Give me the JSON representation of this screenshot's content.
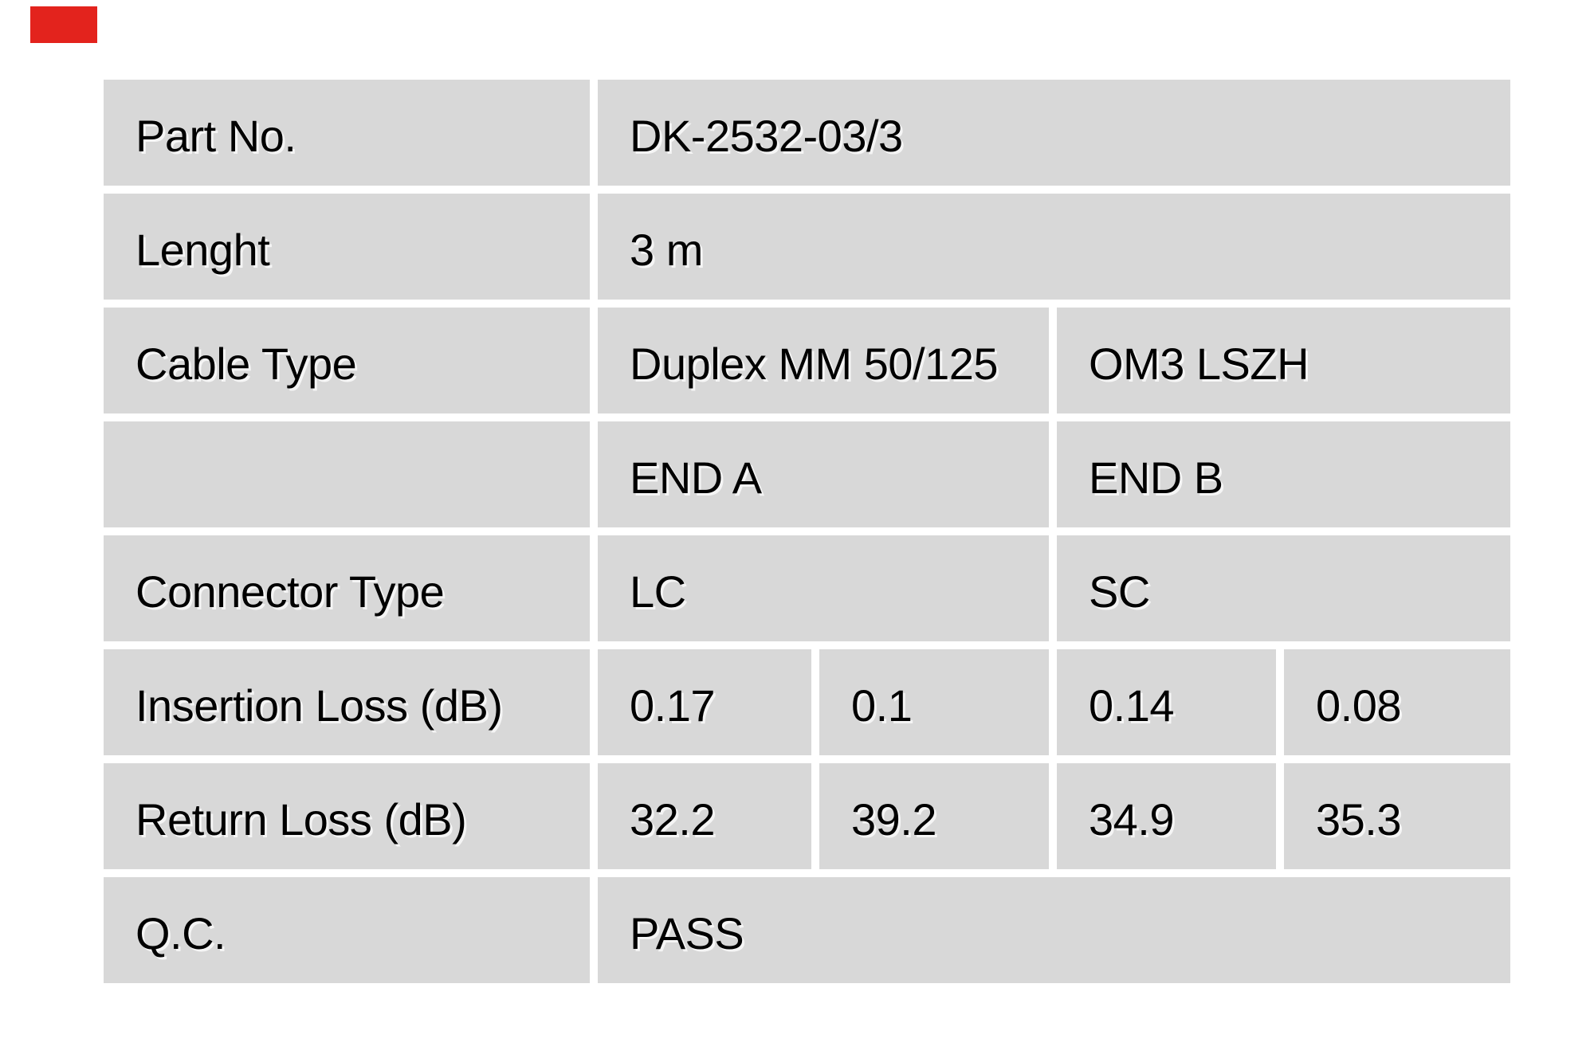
{
  "page": {
    "background_color": "#ffffff"
  },
  "logo": {
    "name": "red-brand-block",
    "color": "#e3231d"
  },
  "table": {
    "cell_background_color": "#d8d8d8",
    "text_color": "#000000",
    "column_group_headers": [
      "END A",
      "END B"
    ],
    "rows": [
      {
        "label": "Part No.",
        "cells": [
          {
            "text": "DK-2532-03/3"
          }
        ]
      },
      {
        "label": "Lenght",
        "cells": [
          {
            "text": "3 m"
          }
        ]
      },
      {
        "label": "Cable Type",
        "cells": [
          {
            "text": "Duplex MM 50/125"
          },
          {
            "text": "OM3 LSZH"
          }
        ]
      },
      {
        "label": "",
        "cells": [
          {
            "text": "END A"
          },
          {
            "text": "END B"
          }
        ]
      },
      {
        "label": "Connector Type",
        "cells": [
          {
            "text": "LC"
          },
          {
            "text": "SC"
          }
        ]
      },
      {
        "label": "Insertion Loss (dB)",
        "cells": [
          {
            "text": "0.17"
          },
          {
            "text": "0.1"
          },
          {
            "text": "0.14"
          },
          {
            "text": "0.08"
          }
        ]
      },
      {
        "label": "Return Loss (dB)",
        "cells": [
          {
            "text": "32.2"
          },
          {
            "text": "39.2"
          },
          {
            "text": "34.9"
          },
          {
            "text": "35.3"
          }
        ]
      },
      {
        "label": "Q.C.",
        "cells": [
          {
            "text": "PASS"
          }
        ]
      }
    ]
  }
}
